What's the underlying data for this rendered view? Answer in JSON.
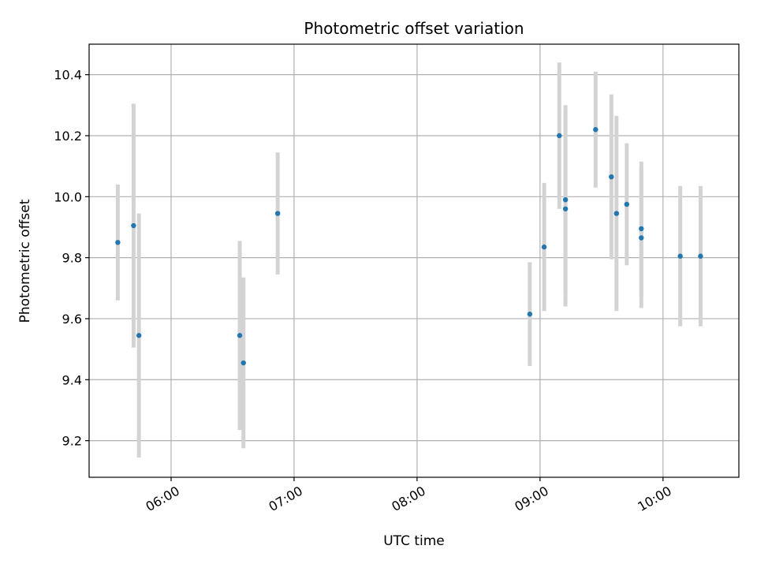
{
  "chart_data": {
    "type": "scatter",
    "title": "Photometric offset variation",
    "xlabel": "UTC time",
    "ylabel": "Photometric offset",
    "x_unit": "minutes after midnight UTC",
    "xlim": [
      320,
      637
    ],
    "ylim": [
      9.08,
      10.5
    ],
    "grid": true,
    "marker_color": "#1f77b4",
    "errorbar_color": "#d3d3d3",
    "x_ticks": [
      {
        "value": 360,
        "label": "06:00"
      },
      {
        "value": 420,
        "label": "07:00"
      },
      {
        "value": 480,
        "label": "08:00"
      },
      {
        "value": 540,
        "label": "09:00"
      },
      {
        "value": 600,
        "label": "10:00"
      }
    ],
    "y_ticks": [
      {
        "value": 9.2,
        "label": "9.2"
      },
      {
        "value": 9.4,
        "label": "9.4"
      },
      {
        "value": 9.6,
        "label": "9.6"
      },
      {
        "value": 9.8,
        "label": "9.8"
      },
      {
        "value": 10.0,
        "label": "10.0"
      },
      {
        "value": 10.2,
        "label": "10.2"
      },
      {
        "value": 10.4,
        "label": "10.4"
      }
    ],
    "points": [
      {
        "time": "05:34",
        "x": 334.0,
        "y": 9.85,
        "err": 0.19
      },
      {
        "time": "05:42",
        "x": 341.7,
        "y": 9.905,
        "err": 0.4
      },
      {
        "time": "05:45",
        "x": 344.3,
        "y": 9.545,
        "err": 0.4
      },
      {
        "time": "06:34",
        "x": 393.5,
        "y": 9.545,
        "err": 0.31
      },
      {
        "time": "06:36",
        "x": 395.3,
        "y": 9.455,
        "err": 0.28
      },
      {
        "time": "06:52",
        "x": 412.0,
        "y": 9.945,
        "err": 0.2
      },
      {
        "time": "08:55",
        "x": 535.0,
        "y": 9.615,
        "err": 0.17
      },
      {
        "time": "09:02",
        "x": 542.0,
        "y": 9.835,
        "err": 0.21
      },
      {
        "time": "09:09",
        "x": 549.4,
        "y": 10.2,
        "err": 0.24
      },
      {
        "time": "09:12",
        "x": 552.4,
        "y": 9.99,
        "err": 0.31
      },
      {
        "time": "09:12",
        "x": 552.4,
        "y": 9.96,
        "err": 0.32
      },
      {
        "time": "09:27",
        "x": 567.1,
        "y": 10.22,
        "err": 0.19
      },
      {
        "time": "09:34",
        "x": 574.8,
        "y": 10.065,
        "err": 0.27
      },
      {
        "time": "09:37",
        "x": 577.3,
        "y": 9.945,
        "err": 0.32
      },
      {
        "time": "09:42",
        "x": 582.3,
        "y": 9.975,
        "err": 0.2
      },
      {
        "time": "09:49",
        "x": 589.4,
        "y": 9.895,
        "err": 0.22
      },
      {
        "time": "09:49",
        "x": 589.4,
        "y": 9.865,
        "err": 0.23
      },
      {
        "time": "10:08",
        "x": 608.4,
        "y": 9.805,
        "err": 0.23
      },
      {
        "time": "10:18",
        "x": 618.3,
        "y": 9.805,
        "err": 0.23
      }
    ]
  }
}
